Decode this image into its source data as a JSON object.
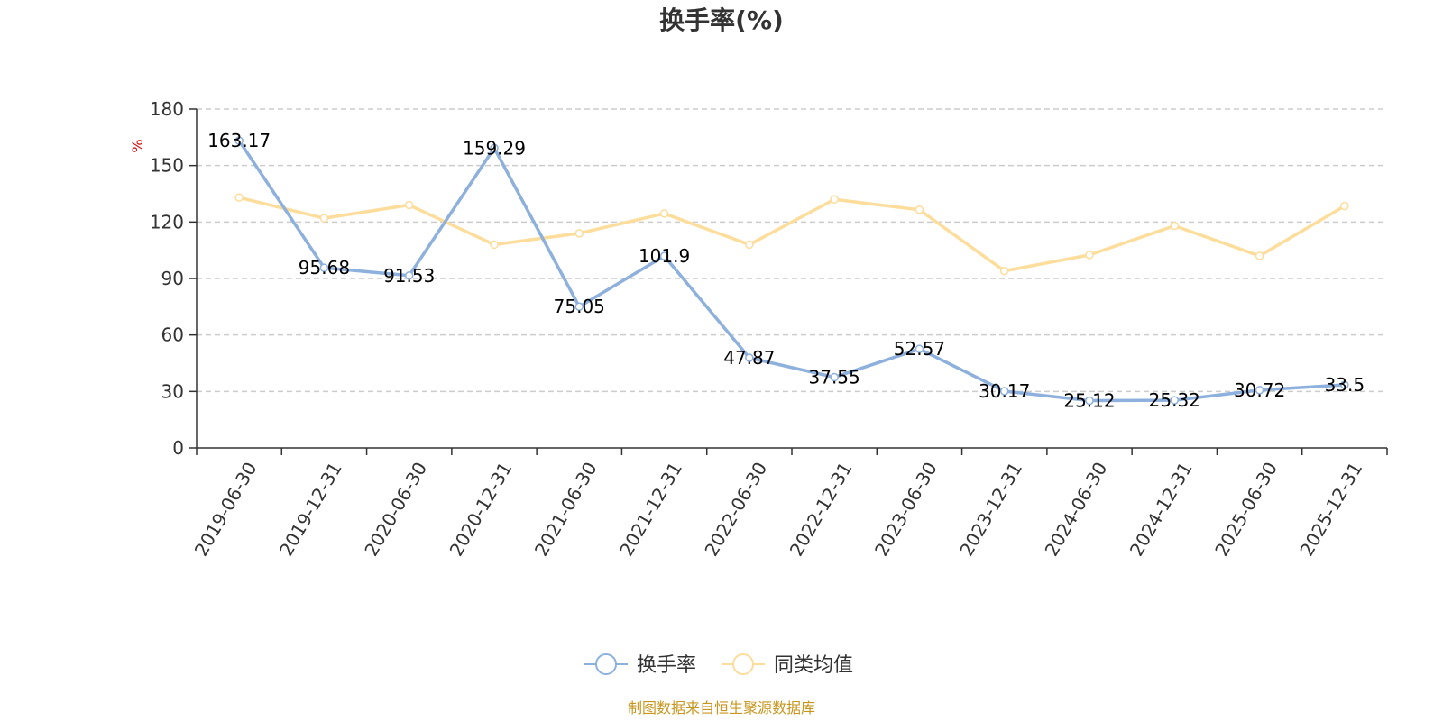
{
  "chart_data": {
    "type": "line",
    "title": "换手率(%)",
    "y_unit": "%",
    "ylim": [
      0,
      180
    ],
    "y_ticks": [
      0,
      30,
      60,
      90,
      120,
      150,
      180
    ],
    "grid": true,
    "legend_position": "bottom",
    "categories": [
      "2019-06-30",
      "2019-12-31",
      "2020-06-30",
      "2020-12-31",
      "2021-06-30",
      "2021-12-31",
      "2022-06-30",
      "2022-12-31",
      "2023-06-30",
      "2023-12-31",
      "2024-06-30",
      "2024-12-31",
      "2025-06-30",
      "2025-12-31"
    ],
    "series": [
      {
        "name": "换手率",
        "color": "#8eb0dc",
        "values": [
          163.17,
          95.68,
          91.53,
          159.29,
          75.05,
          101.9,
          47.87,
          37.55,
          52.57,
          30.17,
          25.12,
          25.32,
          30.72,
          33.5
        ],
        "labels": [
          "163.17",
          "95.68",
          "91.53",
          "159.29",
          "75.05",
          "101.9",
          "47.87",
          "37.55",
          "52.57",
          "30.17",
          "25.12",
          "25.32",
          "30.72",
          "33.5"
        ]
      },
      {
        "name": "同类均值",
        "color": "#fddd9b",
        "values": [
          133,
          122,
          129,
          108,
          114,
          124.5,
          108,
          132,
          126.5,
          94,
          102.5,
          118,
          102,
          128.5
        ]
      }
    ]
  },
  "source_text": "制图数据来自恒生聚源数据库",
  "colors": {
    "unit": "#e00000",
    "source": "#c8961e",
    "axis": "#333333",
    "grid": "#cccccc"
  }
}
